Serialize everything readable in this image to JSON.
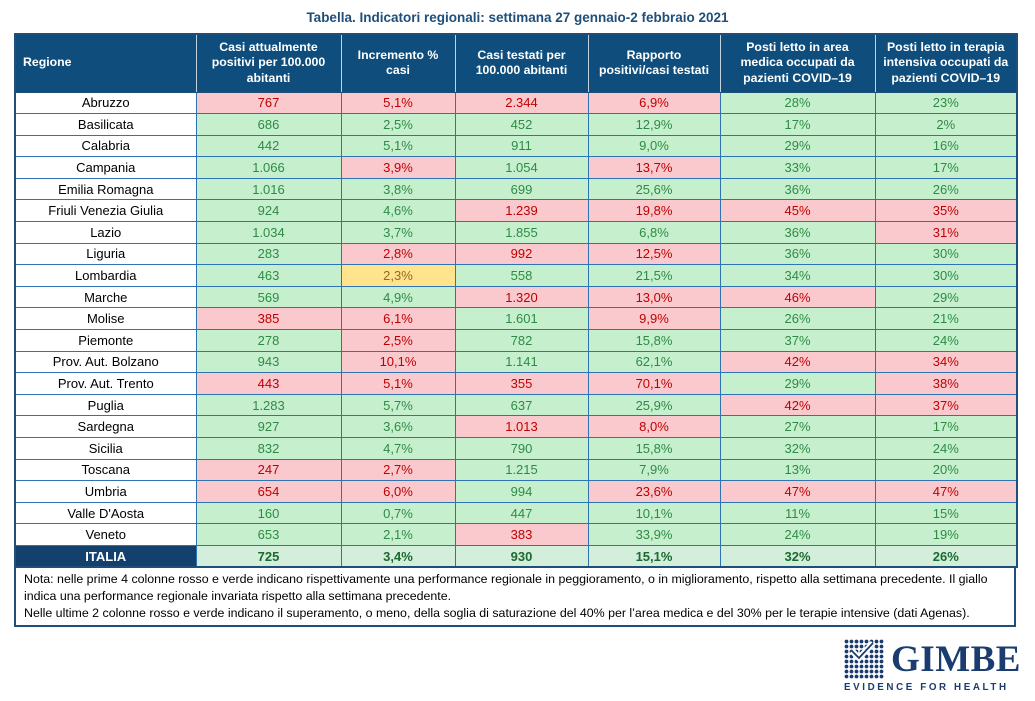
{
  "title": "Tabella. Indicatori regionali: settimana 27 gennaio-2 febbraio 2021",
  "colors": {
    "header_bg": "#0F4E7C",
    "header_text": "#FFFFFF",
    "green_bg": "#C6EFCE",
    "green_text": "#2E8B45",
    "red_bg": "#F9C9CE",
    "red_text": "#C00000",
    "yellow_bg": "#FFE48D",
    "yellow_text": "#8E6C1E",
    "total_bg": "#D3EEDA",
    "total_text": "#1B6A2F",
    "total_label_bg": "#14406E",
    "border_inner": "#2E74B5",
    "border_outer": "#1F4E79",
    "title_text": "#1F4E79",
    "logo_navy": "#1B3C6E"
  },
  "table": {
    "columns": [
      "Regione",
      "Casi attualmente positivi per 100.000 abitanti",
      "Incremento % casi",
      "Casi testati per 100.000 abitanti",
      "Rapporto positivi/casi testati",
      "Posti letto in area medica occupati da pazienti COVID–19",
      "Posti letto in terapia intensiva occupati da pazienti COVID–19"
    ],
    "legend": {
      "red": "peggioramento / soglia superata",
      "green": "miglioramento / sotto soglia",
      "yellow": "invariata"
    },
    "rows": [
      {
        "region": "Abruzzo",
        "cells": [
          {
            "v": "767",
            "c": "red"
          },
          {
            "v": "5,1%",
            "c": "red"
          },
          {
            "v": "2.344",
            "c": "red"
          },
          {
            "v": "6,9%",
            "c": "red"
          },
          {
            "v": "28%",
            "c": "green"
          },
          {
            "v": "23%",
            "c": "green"
          }
        ]
      },
      {
        "region": "Basilicata",
        "cells": [
          {
            "v": "686",
            "c": "green"
          },
          {
            "v": "2,5%",
            "c": "green"
          },
          {
            "v": "452",
            "c": "green"
          },
          {
            "v": "12,9%",
            "c": "green"
          },
          {
            "v": "17%",
            "c": "green"
          },
          {
            "v": "2%",
            "c": "green"
          }
        ]
      },
      {
        "region": "Calabria",
        "cells": [
          {
            "v": "442",
            "c": "green"
          },
          {
            "v": "5,1%",
            "c": "green"
          },
          {
            "v": "911",
            "c": "green"
          },
          {
            "v": "9,0%",
            "c": "green"
          },
          {
            "v": "29%",
            "c": "green"
          },
          {
            "v": "16%",
            "c": "green"
          }
        ]
      },
      {
        "region": "Campania",
        "cells": [
          {
            "v": "1.066",
            "c": "green"
          },
          {
            "v": "3,9%",
            "c": "red"
          },
          {
            "v": "1.054",
            "c": "green"
          },
          {
            "v": "13,7%",
            "c": "red"
          },
          {
            "v": "33%",
            "c": "green"
          },
          {
            "v": "17%",
            "c": "green"
          }
        ]
      },
      {
        "region": "Emilia Romagna",
        "cells": [
          {
            "v": "1.016",
            "c": "green"
          },
          {
            "v": "3,8%",
            "c": "green"
          },
          {
            "v": "699",
            "c": "green"
          },
          {
            "v": "25,6%",
            "c": "green"
          },
          {
            "v": "36%",
            "c": "green"
          },
          {
            "v": "26%",
            "c": "green"
          }
        ]
      },
      {
        "region": "Friuli Venezia Giulia",
        "cells": [
          {
            "v": "924",
            "c": "green"
          },
          {
            "v": "4,6%",
            "c": "green"
          },
          {
            "v": "1.239",
            "c": "red"
          },
          {
            "v": "19,8%",
            "c": "red"
          },
          {
            "v": "45%",
            "c": "red"
          },
          {
            "v": "35%",
            "c": "red"
          }
        ]
      },
      {
        "region": "Lazio",
        "cells": [
          {
            "v": "1.034",
            "c": "green"
          },
          {
            "v": "3,7%",
            "c": "green"
          },
          {
            "v": "1.855",
            "c": "green"
          },
          {
            "v": "6,8%",
            "c": "green"
          },
          {
            "v": "36%",
            "c": "green"
          },
          {
            "v": "31%",
            "c": "red"
          }
        ]
      },
      {
        "region": "Liguria",
        "cells": [
          {
            "v": "283",
            "c": "green"
          },
          {
            "v": "2,8%",
            "c": "red"
          },
          {
            "v": "992",
            "c": "red"
          },
          {
            "v": "12,5%",
            "c": "red"
          },
          {
            "v": "36%",
            "c": "green"
          },
          {
            "v": "30%",
            "c": "green"
          }
        ]
      },
      {
        "region": "Lombardia",
        "cells": [
          {
            "v": "463",
            "c": "green"
          },
          {
            "v": "2,3%",
            "c": "yellow"
          },
          {
            "v": "558",
            "c": "green"
          },
          {
            "v": "21,5%",
            "c": "green"
          },
          {
            "v": "34%",
            "c": "green"
          },
          {
            "v": "30%",
            "c": "green"
          }
        ]
      },
      {
        "region": "Marche",
        "cells": [
          {
            "v": "569",
            "c": "green"
          },
          {
            "v": "4,9%",
            "c": "green"
          },
          {
            "v": "1.320",
            "c": "red"
          },
          {
            "v": "13,0%",
            "c": "red"
          },
          {
            "v": "46%",
            "c": "red"
          },
          {
            "v": "29%",
            "c": "green"
          }
        ]
      },
      {
        "region": "Molise",
        "cells": [
          {
            "v": "385",
            "c": "red"
          },
          {
            "v": "6,1%",
            "c": "red"
          },
          {
            "v": "1.601",
            "c": "green"
          },
          {
            "v": "9,9%",
            "c": "red"
          },
          {
            "v": "26%",
            "c": "green"
          },
          {
            "v": "21%",
            "c": "green"
          }
        ]
      },
      {
        "region": "Piemonte",
        "cells": [
          {
            "v": "278",
            "c": "green"
          },
          {
            "v": "2,5%",
            "c": "red"
          },
          {
            "v": "782",
            "c": "green"
          },
          {
            "v": "15,8%",
            "c": "green"
          },
          {
            "v": "37%",
            "c": "green"
          },
          {
            "v": "24%",
            "c": "green"
          }
        ]
      },
      {
        "region": "Prov. Aut. Bolzano",
        "cells": [
          {
            "v": "943",
            "c": "green"
          },
          {
            "v": "10,1%",
            "c": "red"
          },
          {
            "v": "1.141",
            "c": "green"
          },
          {
            "v": "62,1%",
            "c": "green"
          },
          {
            "v": "42%",
            "c": "red"
          },
          {
            "v": "34%",
            "c": "red"
          }
        ]
      },
      {
        "region": "Prov. Aut. Trento",
        "cells": [
          {
            "v": "443",
            "c": "red"
          },
          {
            "v": "5,1%",
            "c": "red"
          },
          {
            "v": "355",
            "c": "red"
          },
          {
            "v": "70,1%",
            "c": "red"
          },
          {
            "v": "29%",
            "c": "green"
          },
          {
            "v": "38%",
            "c": "red"
          }
        ]
      },
      {
        "region": "Puglia",
        "cells": [
          {
            "v": "1.283",
            "c": "green"
          },
          {
            "v": "5,7%",
            "c": "green"
          },
          {
            "v": "637",
            "c": "green"
          },
          {
            "v": "25,9%",
            "c": "green"
          },
          {
            "v": "42%",
            "c": "red"
          },
          {
            "v": "37%",
            "c": "red"
          }
        ]
      },
      {
        "region": "Sardegna",
        "cells": [
          {
            "v": "927",
            "c": "green"
          },
          {
            "v": "3,6%",
            "c": "green"
          },
          {
            "v": "1.013",
            "c": "red"
          },
          {
            "v": "8,0%",
            "c": "red"
          },
          {
            "v": "27%",
            "c": "green"
          },
          {
            "v": "17%",
            "c": "green"
          }
        ]
      },
      {
        "region": "Sicilia",
        "cells": [
          {
            "v": "832",
            "c": "green"
          },
          {
            "v": "4,7%",
            "c": "green"
          },
          {
            "v": "790",
            "c": "green"
          },
          {
            "v": "15,8%",
            "c": "green"
          },
          {
            "v": "32%",
            "c": "green"
          },
          {
            "v": "24%",
            "c": "green"
          }
        ]
      },
      {
        "region": "Toscana",
        "cells": [
          {
            "v": "247",
            "c": "red"
          },
          {
            "v": "2,7%",
            "c": "red"
          },
          {
            "v": "1.215",
            "c": "green"
          },
          {
            "v": "7,9%",
            "c": "green"
          },
          {
            "v": "13%",
            "c": "green"
          },
          {
            "v": "20%",
            "c": "green"
          }
        ]
      },
      {
        "region": "Umbria",
        "cells": [
          {
            "v": "654",
            "c": "red"
          },
          {
            "v": "6,0%",
            "c": "red"
          },
          {
            "v": "994",
            "c": "green"
          },
          {
            "v": "23,6%",
            "c": "red"
          },
          {
            "v": "47%",
            "c": "red"
          },
          {
            "v": "47%",
            "c": "red"
          }
        ]
      },
      {
        "region": "Valle D'Aosta",
        "cells": [
          {
            "v": "160",
            "c": "green"
          },
          {
            "v": "0,7%",
            "c": "green"
          },
          {
            "v": "447",
            "c": "green"
          },
          {
            "v": "10,1%",
            "c": "green"
          },
          {
            "v": "11%",
            "c": "green"
          },
          {
            "v": "15%",
            "c": "green"
          }
        ]
      },
      {
        "region": "Veneto",
        "cells": [
          {
            "v": "653",
            "c": "green"
          },
          {
            "v": "2,1%",
            "c": "green"
          },
          {
            "v": "383",
            "c": "red"
          },
          {
            "v": "33,9%",
            "c": "green"
          },
          {
            "v": "24%",
            "c": "green"
          },
          {
            "v": "19%",
            "c": "green"
          }
        ]
      },
      {
        "region": "ITALIA",
        "total": true,
        "cells": [
          {
            "v": "725",
            "c": "total"
          },
          {
            "v": "3,4%",
            "c": "total"
          },
          {
            "v": "930",
            "c": "total"
          },
          {
            "v": "15,1%",
            "c": "total"
          },
          {
            "v": "32%",
            "c": "total"
          },
          {
            "v": "26%",
            "c": "total"
          }
        ]
      }
    ]
  },
  "notes": [
    "Nota: nelle prime 4 colonne rosso e verde indicano rispettivamente una performance regionale in peggioramento, o in miglioramento, rispetto alla settimana precedente. Il giallo indica una performance regionale invariata rispetto alla settimana precedente.",
    "Nelle ultime 2 colonne rosso e verde indicano il superamento, o meno, della soglia di saturazione del 40% per l’area medica e del 30% per le terapie intensive (dati Agenas)."
  ],
  "logo": {
    "name": "GIMBE",
    "tagline": "EVIDENCE FOR HEALTH"
  }
}
